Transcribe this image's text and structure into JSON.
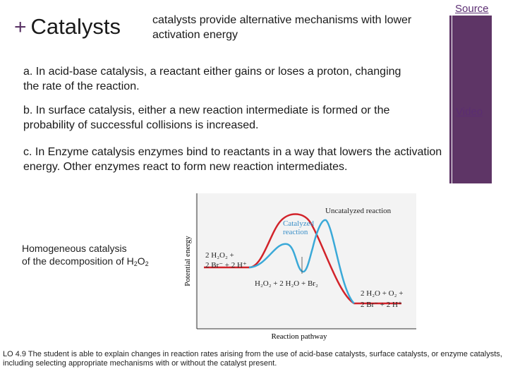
{
  "slide": {
    "title_plus": "+",
    "title": "Catalysts",
    "subtitle": "catalysts provide alternative mechanisms with lower activation energy",
    "links": {
      "source": "Source",
      "video": "Video"
    },
    "paragraphs": {
      "a": "a.  In acid-base catalysis, a reactant either gains or loses a proton, changing the rate of the reaction.",
      "b": "b.  In surface catalysis, either a new reaction intermediate is formed or the probability of successful collisions is increased.",
      "c": "c.  In Enzyme catalysis enzymes bind to reactants in a way that lowers the activation energy.  Other enzymes react to form new reaction intermediates."
    },
    "caption": {
      "line1": "Homogeneous catalysis",
      "line2_prefix": "of the decomposition of H",
      "sub1": "2",
      "mid": "O",
      "sub2": "2"
    },
    "learning_objective": "LO 4.9 The student is able to explain changes in reaction rates arising from the use of acid-base catalysts, surface catalysts, or enzyme catalysts, including selecting appropriate mechanisms with or without the catalyst present.",
    "colors": {
      "sidebar": "#5e3566",
      "uncatalyzed": "#d2232a",
      "catalyzed": "#3aa9d8",
      "link": "#5b2d72"
    }
  },
  "diagram": {
    "ylabel": "Potential energy",
    "xlabel": "Reaction pathway",
    "uncatalyzed_label": "Uncatalyzed reaction",
    "catalyzed_label_1": "Catalyzed",
    "catalyzed_label_2": "reaction",
    "reactants_1": "2 H₂O₂ +",
    "reactants_2": "2 Br⁻ + 2 H⁺",
    "intermediate": "H₂O₂ + 2 H₂O + Br₂",
    "products_1": "2 H₂O + O₂ +",
    "products_2": "2 Br⁻ + 2 H⁺"
  }
}
